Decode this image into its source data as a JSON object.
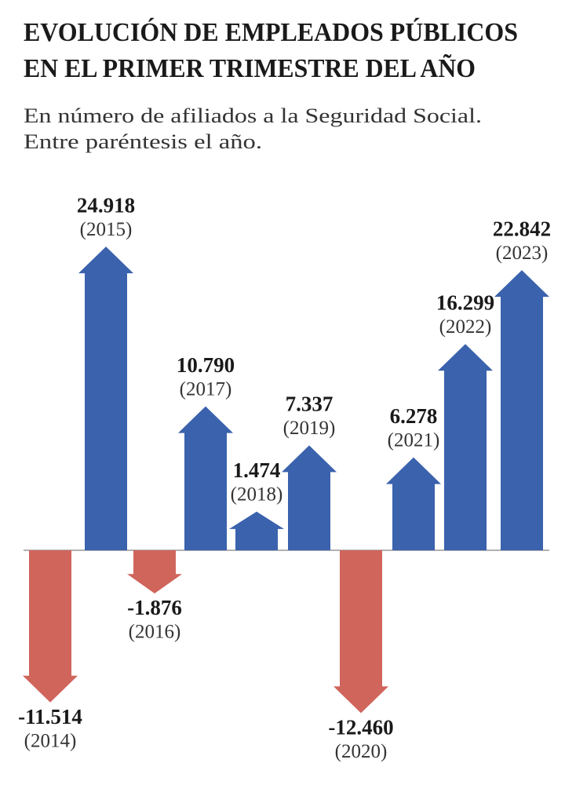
{
  "chart_data": {
    "type": "arrow",
    "title": [
      "EVOLUCIÓN DE EMPLEADOS PÚBLICOS",
      "EN EL PRIMER TRIMESTRE DEL AÑO"
    ],
    "subtitle": [
      "En número de afiliados a la Seguridad Social.",
      "Entre paréntesis el año."
    ],
    "categories": [
      "(2014)",
      "(2015)",
      "(2016)",
      "(2017)",
      "(2018)",
      "(2019)",
      "(2020)",
      "(2021)",
      "(2022)",
      "(2023)"
    ],
    "values": [
      -11514,
      24918,
      -1876,
      10790,
      1474,
      7337,
      -12460,
      6278,
      16299,
      22842
    ],
    "value_labels": [
      "-11.514",
      "24.918",
      "-1.876",
      "10.790",
      "1.474",
      "7.337",
      "-12.460",
      "6.278",
      "16.299",
      "22.842"
    ],
    "positive_color": "#3a62ad",
    "negative_color": "#d0655c"
  }
}
